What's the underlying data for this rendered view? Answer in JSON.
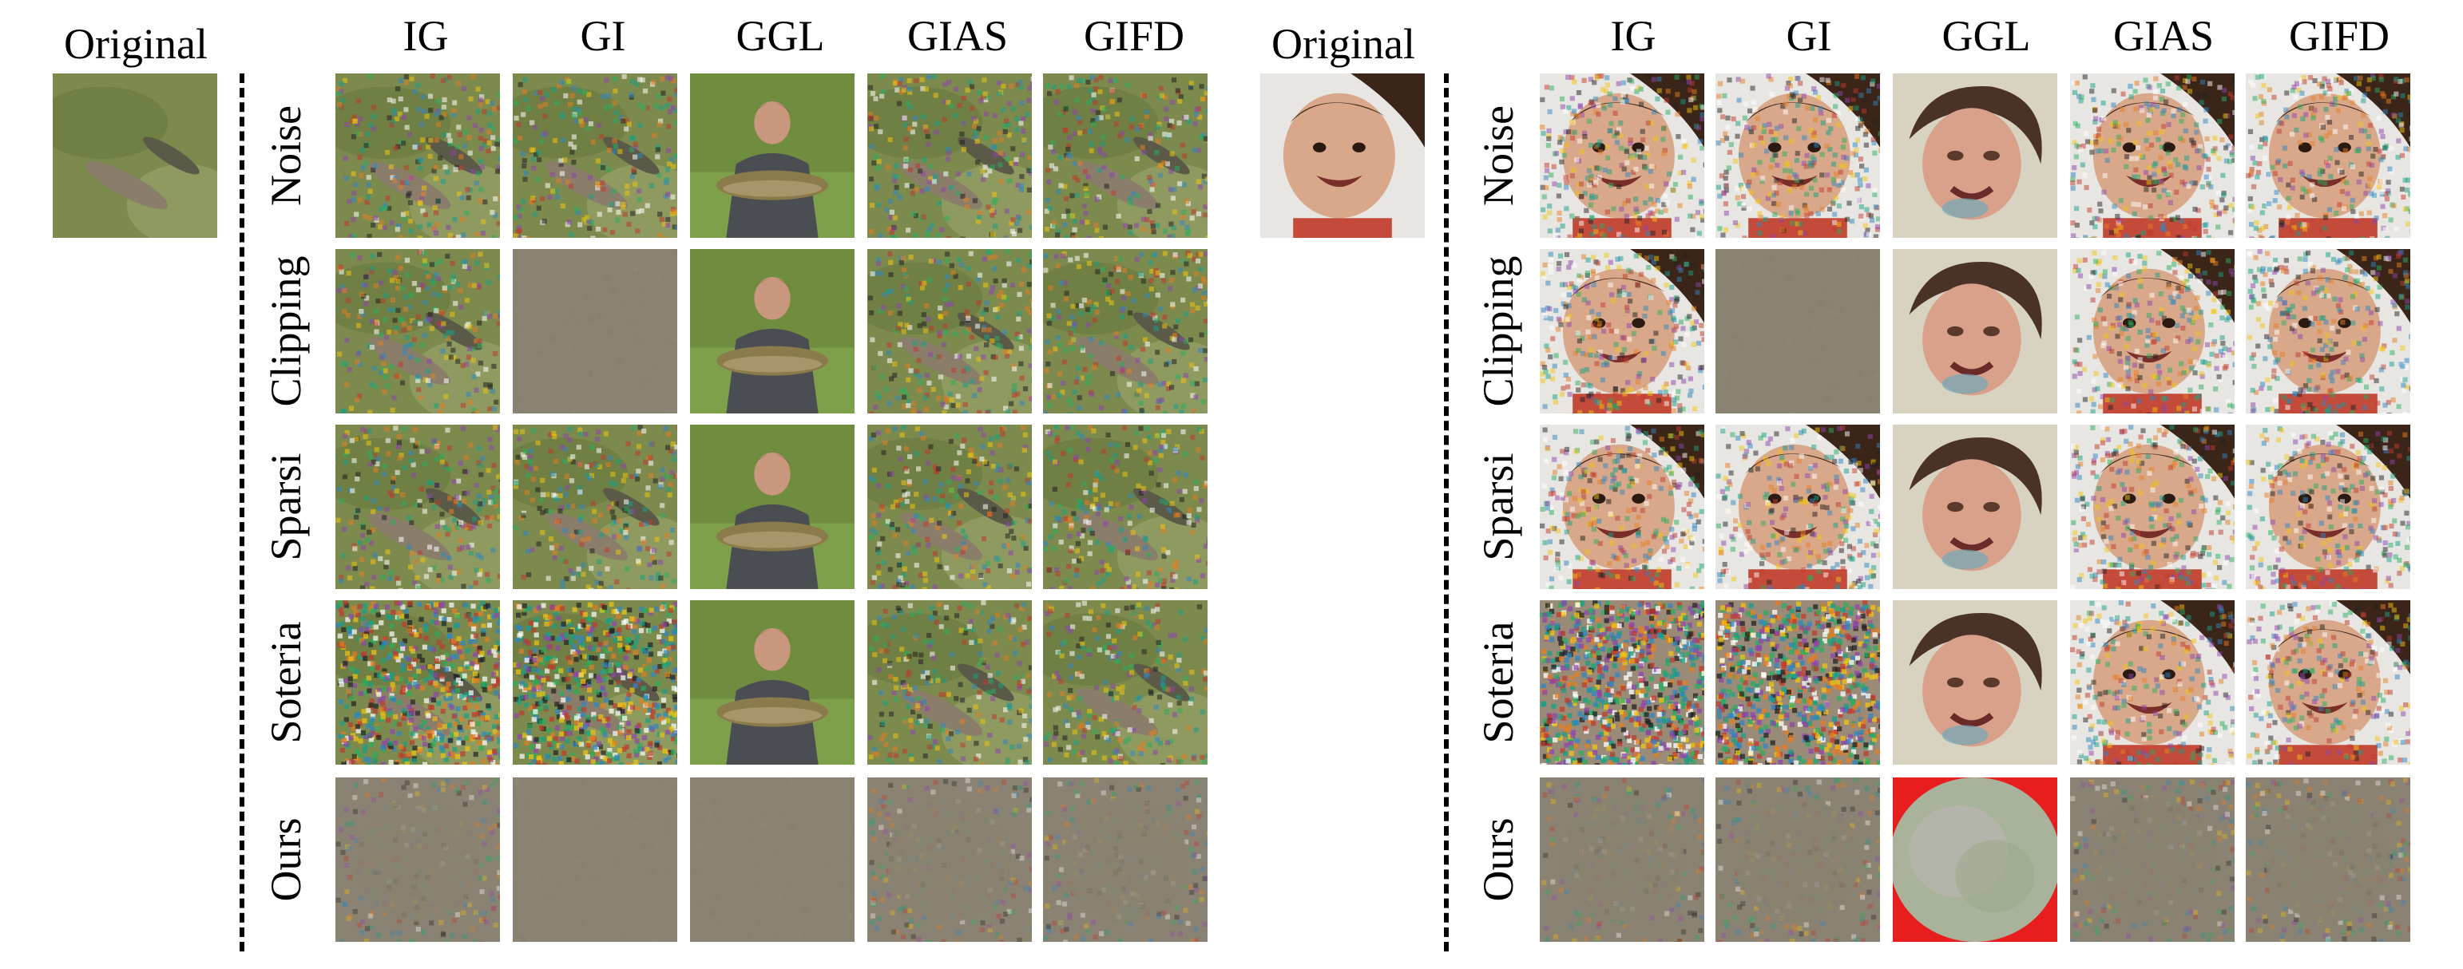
{
  "panels": [
    {
      "id": "fish",
      "original_label": "Original",
      "columns": [
        "IG",
        "GI",
        "GGL",
        "GIAS",
        "GIFD"
      ],
      "rows": [
        "Noise",
        "Clipping",
        "Sparsi",
        "Soteria",
        "Ours"
      ],
      "cells": [
        [
          "noisy-fish",
          "noisy-fish",
          "person-with-fish",
          "noisy-fish",
          "noisy-fish"
        ],
        [
          "noisy-fish",
          "flat-gray",
          "person-with-fish",
          "noisy-fish",
          "noisy-fish"
        ],
        [
          "noisy-fish",
          "noisy-fish",
          "person-with-fish",
          "noisy-fish",
          "noisy-fish"
        ],
        [
          "heavy-noise-fish",
          "heavy-noise-fish",
          "person-with-fish",
          "noisy-fish",
          "noisy-fish"
        ],
        [
          "gray-noise",
          "flat-gray",
          "flat-gray",
          "gray-noise",
          "gray-noise"
        ]
      ],
      "original": "fish"
    },
    {
      "id": "baby",
      "original_label": "Original",
      "columns": [
        "IG",
        "GI",
        "GGL",
        "GIAS",
        "GIFD"
      ],
      "rows": [
        "Noise",
        "Clipping",
        "Sparsi",
        "Soteria",
        "Ours"
      ],
      "cells": [
        [
          "noisy-face",
          "noisy-face",
          "generated-face",
          "noisy-face",
          "noisy-face"
        ],
        [
          "noisy-face",
          "flat-gray",
          "generated-face",
          "noisy-face",
          "noisy-face"
        ],
        [
          "noisy-face",
          "noisy-face",
          "generated-face",
          "noisy-face",
          "noisy-face"
        ],
        [
          "color-noise",
          "color-noise",
          "generated-face",
          "noisy-face",
          "noisy-face"
        ],
        [
          "gray-noise",
          "gray-noise",
          "blurry-blob",
          "gray-noise",
          "gray-noise"
        ]
      ],
      "original": "baby-face"
    }
  ],
  "colors": {
    "grass": "#7d8a4e",
    "fish": "#8a7e6a",
    "gray": "#8a8272",
    "skin": "#d9a88a",
    "hair": "#3b2418"
  }
}
